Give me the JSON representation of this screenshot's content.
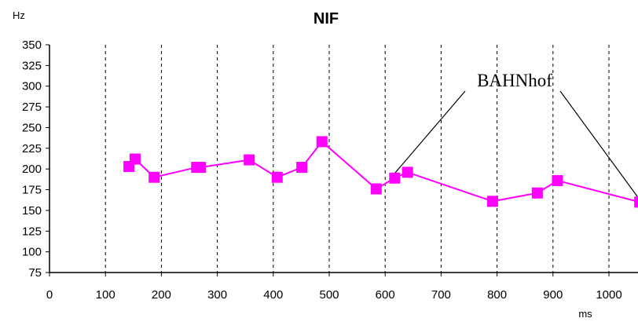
{
  "chart_data": {
    "type": "line",
    "title": "NIF",
    "xlabel": "ms",
    "ylabel": "Hz",
    "xlim": [
      0,
      1050
    ],
    "ylim": [
      75,
      350
    ],
    "x_ticks": [
      0,
      100,
      200,
      300,
      400,
      500,
      600,
      700,
      800,
      900,
      1000
    ],
    "y_ticks": [
      75,
      100,
      125,
      150,
      175,
      200,
      225,
      250,
      275,
      300,
      325,
      350
    ],
    "grid": "vertical dashed at x ticks",
    "color": "#ff00ff",
    "series": [
      {
        "x": [
          142,
          153,
          187,
          263,
          270,
          357,
          407,
          451,
          487,
          584,
          617,
          640,
          792,
          872,
          908,
          1055
        ],
        "y": [
          203,
          212,
          190,
          202,
          202,
          211,
          190,
          202,
          233,
          176,
          189,
          196,
          161,
          171,
          186,
          160
        ]
      }
    ],
    "annotations": [
      {
        "text": "BAHNhof",
        "points_to_x": [
          617,
          1055
        ],
        "points_to_y": [
          189,
          160
        ]
      }
    ]
  }
}
